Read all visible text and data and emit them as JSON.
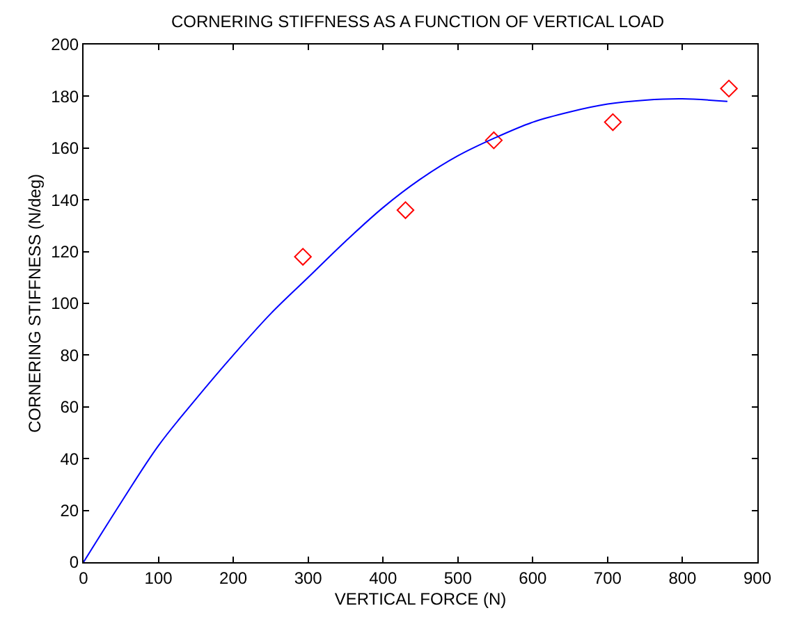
{
  "chart_data": {
    "type": "scatter",
    "title": "CORNERING STIFFNESS AS A FUNCTION OF VERTICAL LOAD",
    "xlabel": "VERTICAL FORCE (N)",
    "ylabel": "CORNERING STIFFNESS (N/deg)",
    "xlim": [
      0,
      900
    ],
    "xticks": [
      0,
      100,
      200,
      300,
      400,
      500,
      600,
      700,
      800,
      900
    ],
    "ylim": [
      0,
      200
    ],
    "yticks": [
      0,
      20,
      40,
      60,
      80,
      100,
      120,
      140,
      160,
      180,
      200
    ],
    "grid": false,
    "legend": false,
    "series": [
      {
        "color": "#ff0000",
        "marker": "diamond",
        "x": [
          293,
          430,
          548,
          707,
          862
        ],
        "values": [
          118,
          136,
          163,
          170,
          183
        ]
      },
      {
        "type": "line",
        "color": "#0000ff",
        "marker": "none",
        "line_style": "solid",
        "x": [
          0,
          50,
          100,
          150,
          200,
          250,
          300,
          350,
          400,
          450,
          500,
          550,
          600,
          650,
          700,
          750,
          800,
          860
        ],
        "values": [
          0,
          23,
          45,
          63,
          80,
          96,
          110,
          124,
          137,
          148,
          157,
          164,
          170,
          174,
          177,
          178.5,
          179,
          178
        ]
      }
    ]
  }
}
